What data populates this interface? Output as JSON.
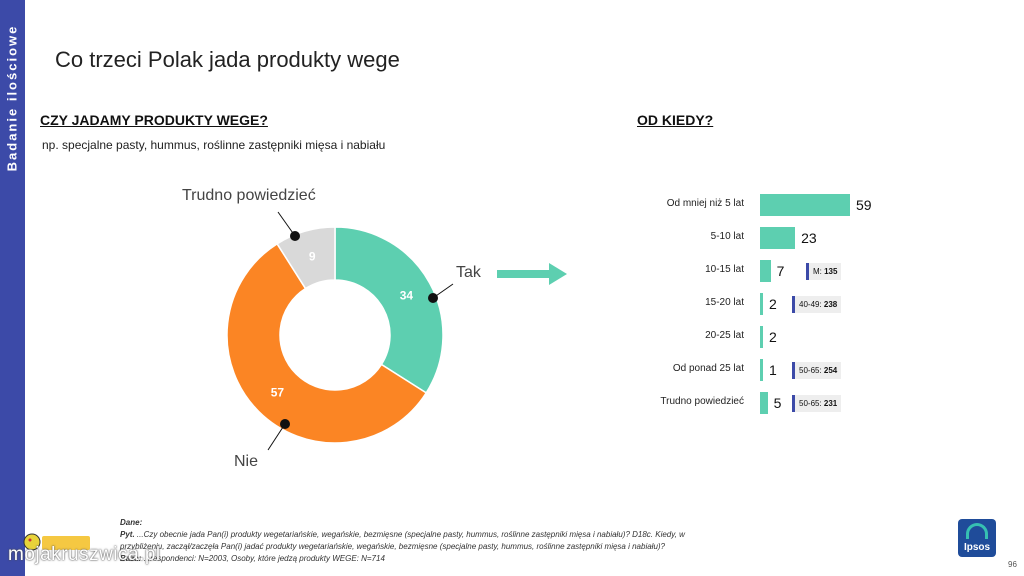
{
  "side_label": "Badanie ilościowe",
  "page_title": "Co trzeci Polak jada produkty wege",
  "left": {
    "title": "CZY JADAMY PRODUKTY WEGE?",
    "subtitle": "np. specjalne pasty, hummus, roślinne zastępniki mięsa i nabiału"
  },
  "right": {
    "title": "OD KIEDY?"
  },
  "colors": {
    "tak": "#5dcfb0",
    "nie": "#fb8524",
    "trudno": "#d9d9d9",
    "band": "#3c4aa8"
  },
  "chart_data": [
    {
      "type": "pie",
      "donut": true,
      "title": "CZY JADAMY PRODUKTY WEGE?",
      "slices": [
        {
          "label": "Tak",
          "value": 34
        },
        {
          "label": "Nie",
          "value": 57
        },
        {
          "label": "Trudno powiedzieć",
          "value": 9
        }
      ]
    },
    {
      "type": "bar",
      "orientation": "horizontal",
      "title": "OD KIEDY?",
      "categories": [
        "Od mniej niż 5 lat",
        "5-10 lat",
        "10-15 lat",
        "15-20 lat",
        "20-25 lat",
        "Od ponad 25 lat",
        "Trudno powiedzieć"
      ],
      "values": [
        59,
        23,
        7,
        2,
        2,
        1,
        5
      ],
      "annotations": [
        null,
        null,
        {
          "prefix": "M:",
          "value": "135"
        },
        {
          "prefix": "40-49:",
          "value": "238"
        },
        null,
        {
          "prefix": "50-65:",
          "value": "254"
        },
        {
          "prefix": "50-65:",
          "value": "231"
        }
      ]
    }
  ],
  "footnote": {
    "line1_label": "Dane:",
    "line2_label": "Pyt.",
    "line2": "...Czy obecnie jada Pan(i) produkty wegetariańskie, wegańskie, bezmięsne (specjalne pasty, hummus, roślinne zastępniki mięsa i nabiału)? D18c. Kiedy, w",
    "line3": "przybliżeniu, zaczął/zaczęła Pan(i) jadać produkty wegetariańskie, wegańskie, bezmięsne (specjalne pasty, hummus, roślinne zastępniki mięsa i nabiału)?",
    "line4_label": "Baza:",
    "line4": "...respondenci: N=2003, Osoby, które jedzą produkty WEGE: N=714"
  },
  "logo_text": "Ipsos",
  "page_number": "96",
  "watermark": "mojakruszwica.pl"
}
